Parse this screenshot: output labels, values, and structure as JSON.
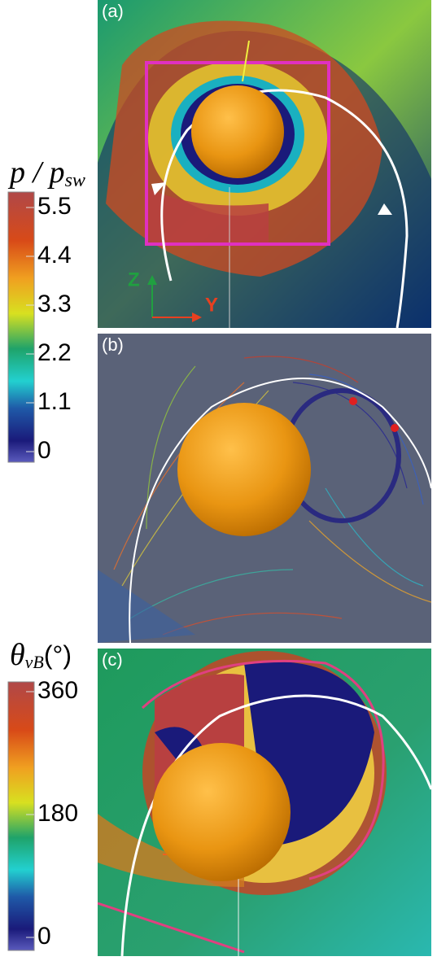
{
  "colorbars": [
    {
      "title": {
        "symbol": "p / p",
        "subscript": "sw"
      },
      "ticks": [
        5.5,
        4.4,
        3.3,
        2.2,
        1.1,
        0
      ]
    },
    {
      "title": {
        "symbol": "θ",
        "subscript": "vB",
        "unit": "(°)"
      },
      "ticks": [
        360,
        180,
        0
      ]
    }
  ],
  "panels": [
    {
      "label": "(a)"
    },
    {
      "label": "(b)"
    },
    {
      "label": "(c)"
    }
  ],
  "axes": {
    "z": "Z",
    "y": "Y"
  }
}
